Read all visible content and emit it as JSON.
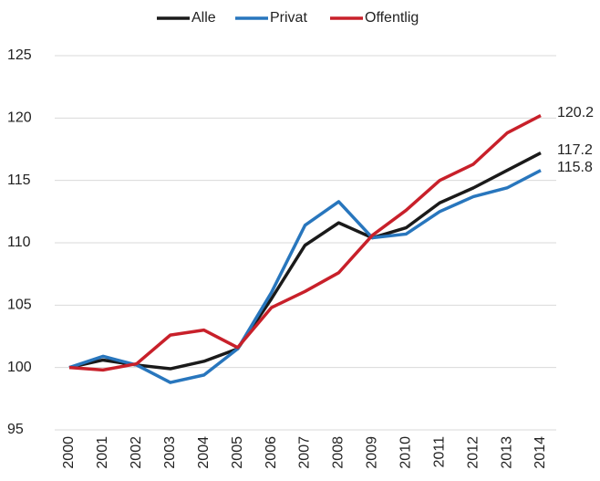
{
  "chart_data": {
    "type": "line",
    "categories": [
      "2000",
      "2001",
      "2002",
      "2003",
      "2004",
      "2005",
      "2006",
      "2007",
      "2008",
      "2009",
      "2010",
      "2011",
      "2012",
      "2013",
      "2014"
    ],
    "series": [
      {
        "name": "Alle",
        "color": "#1a1a1a",
        "values": [
          100,
          100.6,
          100.2,
          99.9,
          100.5,
          101.5,
          105.5,
          109.8,
          111.6,
          110.4,
          111.2,
          113.2,
          114.4,
          115.8,
          117.2
        ]
      },
      {
        "name": "Privat",
        "color": "#2876bd",
        "values": [
          100,
          100.9,
          100.2,
          98.8,
          99.4,
          101.5,
          106,
          111.4,
          113.3,
          110.4,
          110.7,
          112.5,
          113.7,
          114.4,
          115.8
        ]
      },
      {
        "name": "Offentlig",
        "color": "#c8202a",
        "values": [
          100,
          99.8,
          100.3,
          102.6,
          103,
          101.6,
          104.8,
          106.1,
          107.6,
          110.6,
          112.6,
          115,
          116.3,
          118.8,
          120.2
        ]
      }
    ],
    "ylim": [
      95,
      125
    ],
    "yticks": [
      95,
      100,
      105,
      110,
      115,
      120,
      125
    ],
    "grid": true,
    "legend": "top"
  }
}
